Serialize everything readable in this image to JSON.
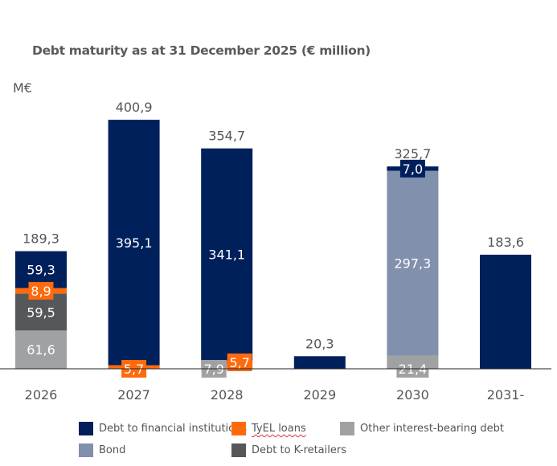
{
  "chart_data": {
    "type": "bar",
    "stacked": true,
    "title": "Debt maturity as at 31 December 2025 (€ million)",
    "ylabel": "M€",
    "xlabel": "",
    "ylim": [
      0,
      420
    ],
    "grid": false,
    "legend_position": "bottom",
    "categories": [
      "2026",
      "2027",
      "2028",
      "2029",
      "2030",
      "2031-"
    ],
    "totals": [
      "189,3",
      "400,9",
      "354,7",
      "20,3",
      "325,7",
      "183,6"
    ],
    "series": [
      {
        "name": "Other interest-bearing debt",
        "color": "#a0a1a3",
        "values": [
          61.6,
          0,
          7.9,
          0,
          21.4,
          0
        ],
        "labels": [
          "61,6",
          "",
          "7,9",
          "",
          "21,4",
          ""
        ]
      },
      {
        "name": "Debt to K-retailers",
        "color": "#55585b",
        "values": [
          59.5,
          0,
          0,
          0,
          0,
          0
        ],
        "labels": [
          "59,5",
          "",
          "",
          "",
          "",
          ""
        ]
      },
      {
        "name": "TyEL loans",
        "color": "#ff6a0d",
        "values": [
          8.9,
          5.7,
          5.7,
          0,
          0,
          0
        ],
        "labels": [
          "8,9",
          "5,7",
          "5,7",
          "",
          "",
          ""
        ]
      },
      {
        "name": "Bond",
        "color": "#8090ad",
        "values": [
          0,
          0,
          0,
          0,
          297.3,
          0
        ],
        "labels": [
          "",
          "",
          "",
          "",
          "297,3",
          ""
        ]
      },
      {
        "name": "Debt to financial institutions",
        "color": "#00205b",
        "values": [
          59.3,
          395.1,
          341.1,
          20.3,
          7.0,
          183.6
        ],
        "labels": [
          "59,3",
          "395,1",
          "341,1",
          "",
          "7,0",
          ""
        ]
      }
    ]
  }
}
